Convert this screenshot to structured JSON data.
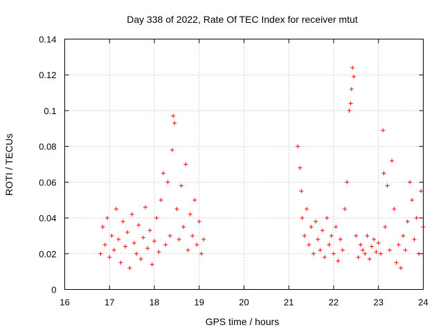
{
  "chart_data": {
    "type": "scatter",
    "title": "Day 338 of 2022, Rate Of TEC Index for receiver mtut",
    "xlabel": "GPS time / hours",
    "ylabel": "ROTI / TECUs",
    "xlim": [
      16,
      24
    ],
    "ylim": [
      0,
      0.14
    ],
    "xticks": [
      "16",
      "17",
      "18",
      "19",
      "20",
      "21",
      "22",
      "23",
      "24"
    ],
    "yticks": [
      "0",
      "0.02",
      "0.04",
      "0.06",
      "0.08",
      "0.1",
      "0.12",
      "0.14"
    ],
    "grid": true,
    "marker": "+",
    "color": "#ff0000",
    "series": [
      {
        "name": "ROTI",
        "x": [
          16.8,
          16.85,
          16.9,
          16.95,
          17.0,
          17.05,
          17.1,
          17.15,
          17.2,
          17.25,
          17.3,
          17.35,
          17.4,
          17.45,
          17.5,
          17.55,
          17.6,
          17.65,
          17.7,
          17.75,
          17.8,
          17.85,
          17.9,
          17.95,
          18.0,
          18.05,
          18.1,
          18.15,
          18.2,
          18.25,
          18.3,
          18.35,
          18.4,
          18.42,
          18.45,
          18.5,
          18.55,
          18.6,
          18.65,
          18.7,
          18.75,
          18.8,
          18.85,
          18.9,
          18.95,
          19.0,
          19.05,
          19.1,
          21.2,
          21.25,
          21.28,
          21.3,
          21.35,
          21.4,
          21.45,
          21.5,
          21.55,
          21.6,
          21.65,
          21.7,
          21.75,
          21.8,
          21.85,
          21.9,
          21.95,
          22.0,
          22.05,
          22.1,
          22.15,
          22.2,
          22.25,
          22.3,
          22.35,
          22.38,
          22.4,
          22.42,
          22.45,
          22.5,
          22.55,
          22.6,
          22.65,
          22.7,
          22.75,
          22.8,
          22.85,
          22.9,
          22.95,
          23.0,
          23.05,
          23.1,
          23.12,
          23.15,
          23.2,
          23.25,
          23.3,
          23.35,
          23.4,
          23.45,
          23.5,
          23.55,
          23.6,
          23.65,
          23.7,
          23.75,
          23.8,
          23.85,
          23.9,
          23.95,
          24.0
        ],
        "y": [
          0.02,
          0.035,
          0.025,
          0.04,
          0.018,
          0.03,
          0.022,
          0.045,
          0.028,
          0.015,
          0.038,
          0.024,
          0.032,
          0.012,
          0.042,
          0.026,
          0.02,
          0.036,
          0.017,
          0.029,
          0.046,
          0.023,
          0.033,
          0.014,
          0.027,
          0.04,
          0.021,
          0.05,
          0.065,
          0.025,
          0.06,
          0.03,
          0.078,
          0.097,
          0.093,
          0.045,
          0.028,
          0.058,
          0.035,
          0.07,
          0.022,
          0.042,
          0.03,
          0.05,
          0.025,
          0.038,
          0.02,
          0.028,
          0.08,
          0.068,
          0.055,
          0.04,
          0.03,
          0.045,
          0.025,
          0.035,
          0.02,
          0.038,
          0.028,
          0.022,
          0.033,
          0.018,
          0.04,
          0.025,
          0.03,
          0.02,
          0.035,
          0.016,
          0.028,
          0.022,
          0.045,
          0.06,
          0.1,
          0.104,
          0.112,
          0.124,
          0.119,
          0.03,
          0.018,
          0.025,
          0.022,
          0.02,
          0.03,
          0.017,
          0.024,
          0.028,
          0.021,
          0.026,
          0.02,
          0.089,
          0.065,
          0.035,
          0.058,
          0.022,
          0.072,
          0.045,
          0.015,
          0.025,
          0.012,
          0.03,
          0.022,
          0.038,
          0.06,
          0.05,
          0.028,
          0.04,
          0.02,
          0.055,
          0.035
        ]
      }
    ]
  }
}
